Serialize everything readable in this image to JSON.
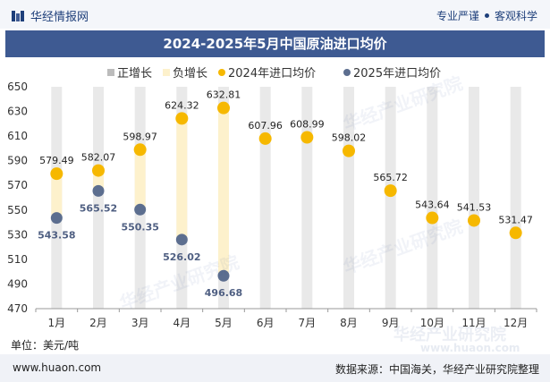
{
  "header": {
    "brand": "华经情报网",
    "tagline_1": "专业严谨",
    "tagline_2": "客观科学"
  },
  "footer": {
    "website": "www.huaon.com",
    "source": "数据来源：中国海关，华经产业研究院整理"
  },
  "unit_label": "单位：美元/吨",
  "watermark": "华经产业研究院",
  "watermark_url": "www.huaon.com",
  "colors": {
    "series_2024": "#f6b800",
    "series_2025": "#5c6e8f",
    "bar_bg": "#e9e9e9",
    "increase": "#bcbcbc",
    "decrease": "#fdf1cc",
    "title_bg": "#3e5a92"
  },
  "chart_data": {
    "type": "line",
    "title": "2024-2025年5月中国原油进口均价",
    "categories": [
      "1月",
      "2月",
      "3月",
      "4月",
      "5月",
      "6月",
      "7月",
      "8月",
      "9月",
      "10月",
      "11月",
      "12月"
    ],
    "series": [
      {
        "name": "2024年进口均价",
        "values": [
          579.49,
          582.07,
          598.97,
          624.32,
          632.81,
          607.96,
          608.99,
          598.02,
          565.72,
          543.64,
          541.53,
          531.47
        ]
      },
      {
        "name": "2025年进口均价",
        "values": [
          543.58,
          565.52,
          550.35,
          526.02,
          496.68,
          null,
          null,
          null,
          null,
          null,
          null,
          null
        ]
      }
    ],
    "legend": [
      "正增长",
      "负增长",
      "2024年进口均价",
      "2025年进口均价"
    ],
    "ylim": [
      470,
      650
    ],
    "yticks": [
      470,
      490,
      510,
      530,
      550,
      570,
      590,
      610,
      630,
      650
    ],
    "xlabel": "",
    "ylabel": "美元/吨",
    "legend_position": "top"
  }
}
